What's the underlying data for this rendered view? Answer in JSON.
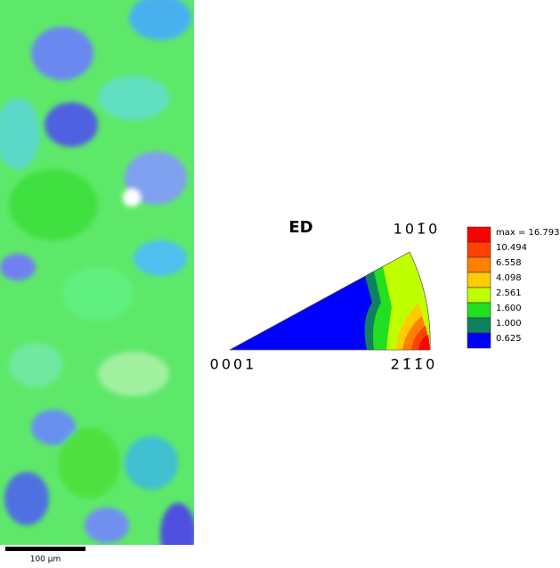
{
  "map": {
    "scale_bar": "100 µm"
  },
  "ipf": {
    "direction": "ED",
    "corner_top": "101̄0",
    "corner_left": "0001",
    "corner_right": "21̄1̄0"
  },
  "legend": {
    "entries": [
      {
        "label": "max = 16.793",
        "color": "#ff0000"
      },
      {
        "label": "10.494",
        "color": "#ff4000"
      },
      {
        "label": "6.558",
        "color": "#ff8000"
      },
      {
        "label": "4.098",
        "color": "#ffcc00"
      },
      {
        "label": "2.561",
        "color": "#c0ff00"
      },
      {
        "label": "1.600",
        "color": "#20e020"
      },
      {
        "label": "1.000",
        "color": "#108060"
      },
      {
        "label": "0.625",
        "color": "#0000ff"
      }
    ]
  }
}
